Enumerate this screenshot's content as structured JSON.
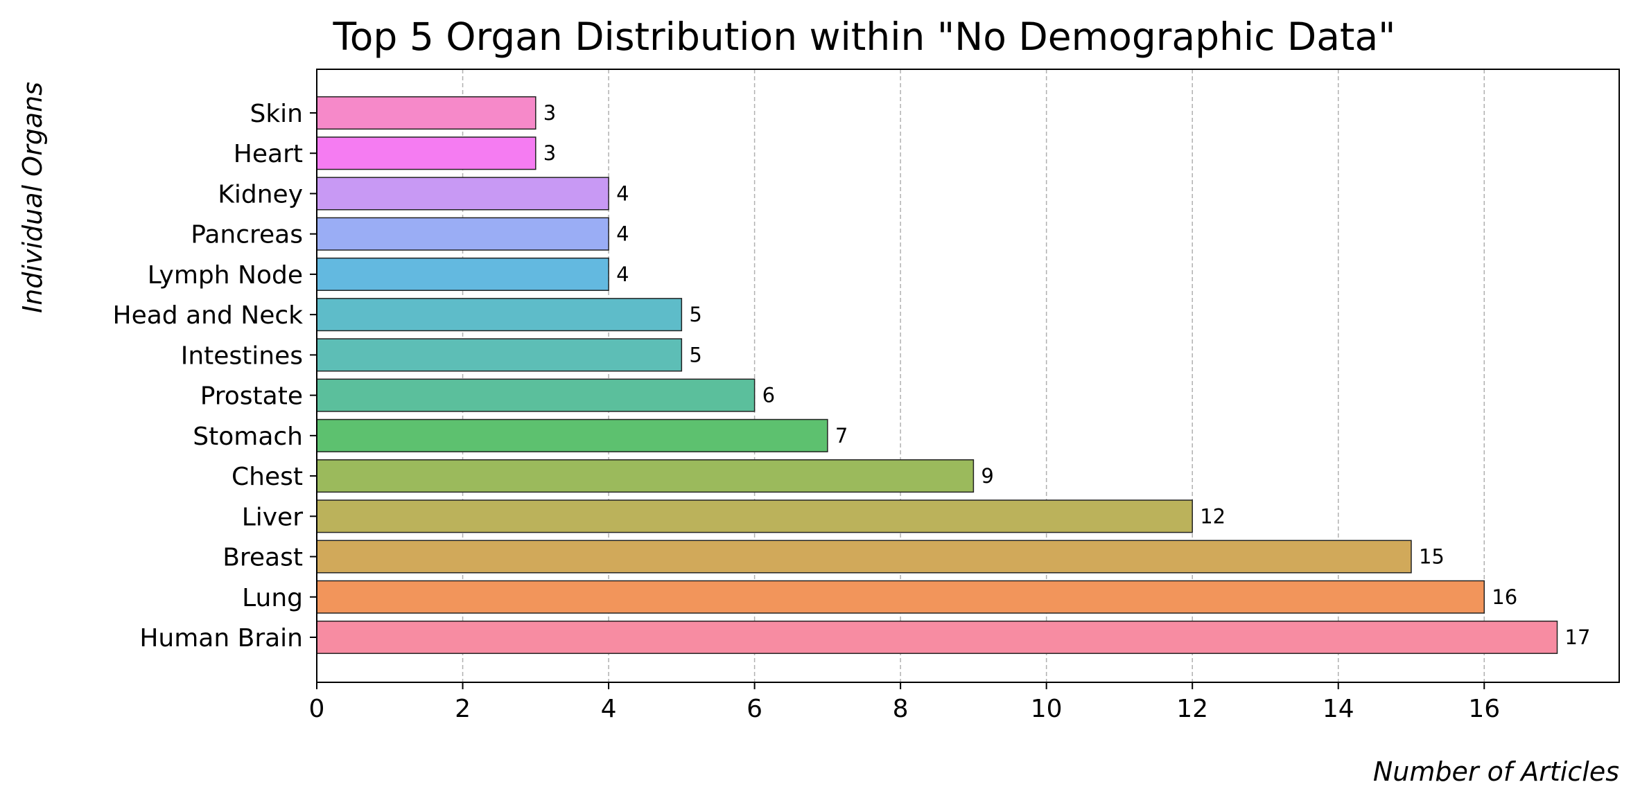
{
  "chart_data": {
    "type": "bar",
    "orientation": "horizontal",
    "title": "Top 5 Organ Distribution within \"No Demographic Data\"",
    "xlabel": "Number of Articles",
    "ylabel": "Individual Organs",
    "xlim": [
      0,
      17.85
    ],
    "xticks": [
      0,
      2,
      4,
      6,
      8,
      10,
      12,
      14,
      16
    ],
    "grid": "x-dashed",
    "categories": [
      "Human Brain",
      "Lung",
      "Breast",
      "Liver",
      "Chest",
      "Stomach",
      "Prostate",
      "Intestines",
      "Head and Neck",
      "Lymph Node",
      "Pancreas",
      "Kidney",
      "Heart",
      "Skin"
    ],
    "values": [
      17,
      16,
      15,
      12,
      9,
      7,
      6,
      5,
      5,
      4,
      4,
      4,
      3,
      3
    ],
    "colors": [
      "#f78ca2",
      "#f2955b",
      "#d1a95a",
      "#bbb25b",
      "#9bba5c",
      "#5dc16f",
      "#5bbf9c",
      "#5dbeb6",
      "#5ebcc9",
      "#63b9e0",
      "#9aadf5",
      "#c899f4",
      "#f57cf2",
      "#f689c9"
    ]
  }
}
